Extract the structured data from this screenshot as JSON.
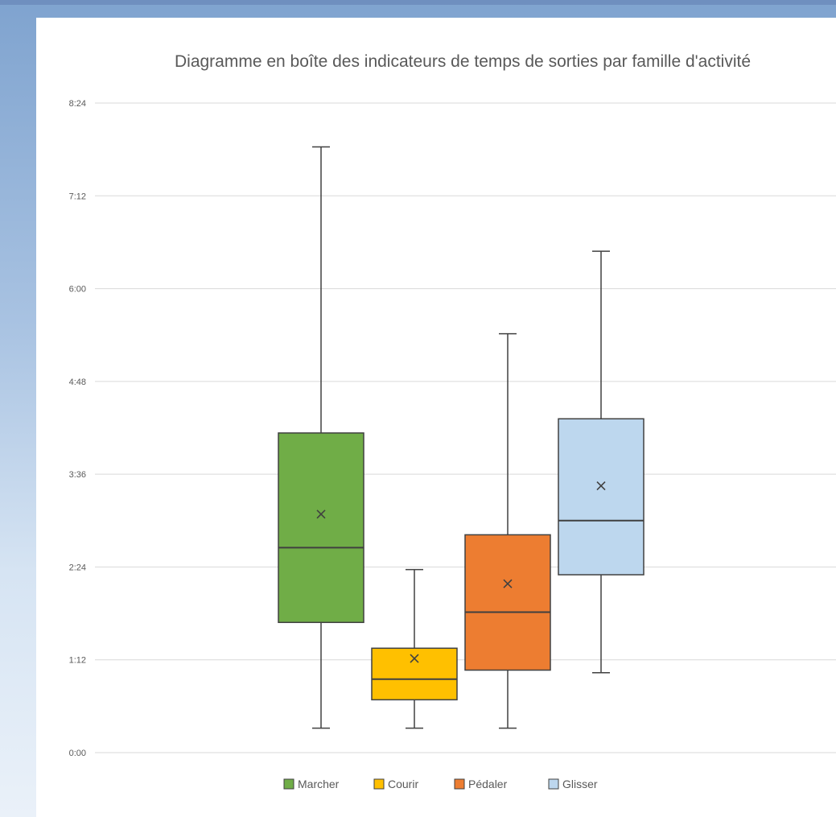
{
  "chart_data": {
    "type": "box",
    "title": "Diagramme en boîte des indicateurs de temps de sorties par famille d'activité",
    "y_axis": {
      "min": 0,
      "max": 504,
      "unit": "minutes",
      "ticks": [
        {
          "value": 0,
          "label": "0:00"
        },
        {
          "value": 72,
          "label": "1:12"
        },
        {
          "value": 144,
          "label": "2:24"
        },
        {
          "value": 216,
          "label": "3:36"
        },
        {
          "value": 288,
          "label": "4:48"
        },
        {
          "value": 360,
          "label": "6:00"
        },
        {
          "value": 432,
          "label": "7:12"
        },
        {
          "value": 504,
          "label": "8:24"
        }
      ],
      "grid": true
    },
    "series": [
      {
        "name": "Marcher",
        "color": "#70ad47",
        "min": 19,
        "q1": 101,
        "median": 159,
        "q3": 248,
        "max": 470,
        "mean": 185
      },
      {
        "name": "Courir",
        "color": "#ffc000",
        "min": 19,
        "q1": 41,
        "median": 57,
        "q3": 81,
        "max": 142,
        "mean": 73
      },
      {
        "name": "Pédaler",
        "color": "#ed7d31",
        "min": 19,
        "q1": 64,
        "median": 109,
        "q3": 169,
        "max": 325,
        "mean": 131
      },
      {
        "name": "Glisser",
        "color": "#bdd7ee",
        "min": 62,
        "q1": 138,
        "median": 180,
        "q3": 259,
        "max": 389,
        "mean": 207
      }
    ],
    "legend_position": "bottom"
  }
}
